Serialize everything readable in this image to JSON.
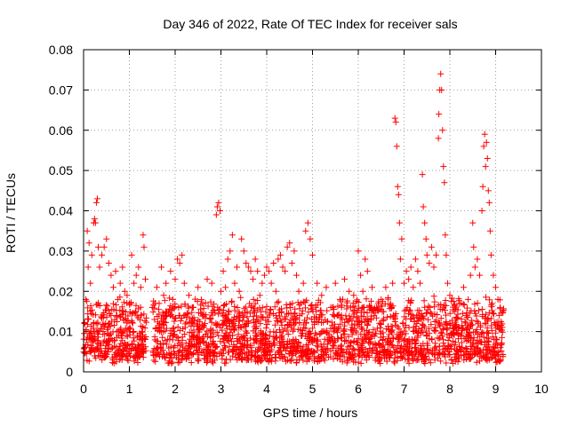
{
  "chart_data": {
    "type": "scatter",
    "title": "Day 346 of 2022, Rate Of TEC Index for receiver sals",
    "xlabel": "GPS time / hours",
    "ylabel": "ROTI / TECUs",
    "xlim": [
      0,
      10
    ],
    "ylim": [
      0,
      0.08
    ],
    "x_ticks": [
      "0",
      "1",
      "2",
      "3",
      "4",
      "5",
      "6",
      "7",
      "8",
      "9",
      "10"
    ],
    "y_ticks": [
      "0",
      "0.01",
      "0.02",
      "0.03",
      "0.04",
      "0.05",
      "0.06",
      "0.07",
      "0.08"
    ],
    "grid": true,
    "marker": "+",
    "marker_color": "#ff0000",
    "series": [
      {
        "name": "ROTI",
        "points": [
          [
            0.02,
            0.012
          ],
          [
            0.05,
            0.018
          ],
          [
            0.08,
            0.035
          ],
          [
            0.1,
            0.026
          ],
          [
            0.12,
            0.032
          ],
          [
            0.15,
            0.022
          ],
          [
            0.18,
            0.029
          ],
          [
            0.22,
            0.037
          ],
          [
            0.24,
            0.038
          ],
          [
            0.26,
            0.037
          ],
          [
            0.28,
            0.042
          ],
          [
            0.3,
            0.043
          ],
          [
            0.32,
            0.031
          ],
          [
            0.35,
            0.026
          ],
          [
            0.4,
            0.029
          ],
          [
            0.45,
            0.031
          ],
          [
            0.5,
            0.033
          ],
          [
            0.55,
            0.027
          ],
          [
            0.6,
            0.024
          ],
          [
            0.65,
            0.021
          ],
          [
            0.7,
            0.025
          ],
          [
            0.75,
            0.018
          ],
          [
            0.8,
            0.022
          ],
          [
            0.85,
            0.026
          ],
          [
            0.9,
            0.02
          ],
          [
            0.95,
            0.019
          ],
          [
            1.0,
            0.017
          ],
          [
            1.05,
            0.029
          ],
          [
            1.1,
            0.022
          ],
          [
            1.15,
            0.024
          ],
          [
            1.2,
            0.026
          ],
          [
            1.25,
            0.021
          ],
          [
            1.3,
            0.034
          ],
          [
            1.32,
            0.031
          ],
          [
            1.35,
            0.023
          ],
          [
            1.5,
            0.016
          ],
          [
            1.55,
            0.013
          ],
          [
            1.6,
            0.021
          ],
          [
            1.65,
            0.017
          ],
          [
            1.7,
            0.026
          ],
          [
            1.75,
            0.019
          ],
          [
            1.8,
            0.022
          ],
          [
            1.85,
            0.015
          ],
          [
            1.9,
            0.025
          ],
          [
            1.95,
            0.018
          ],
          [
            2.0,
            0.023
          ],
          [
            2.05,
            0.028
          ],
          [
            2.1,
            0.027
          ],
          [
            2.15,
            0.029
          ],
          [
            2.2,
            0.022
          ],
          [
            2.3,
            0.019
          ],
          [
            2.4,
            0.016
          ],
          [
            2.5,
            0.021
          ],
          [
            2.6,
            0.017
          ],
          [
            2.7,
            0.023
          ],
          [
            2.8,
            0.022
          ],
          [
            2.9,
            0.039
          ],
          [
            2.92,
            0.041
          ],
          [
            2.95,
            0.042
          ],
          [
            2.98,
            0.04
          ],
          [
            3.0,
            0.02
          ],
          [
            3.05,
            0.025
          ],
          [
            3.1,
            0.021
          ],
          [
            3.15,
            0.028
          ],
          [
            3.2,
            0.03
          ],
          [
            3.25,
            0.034
          ],
          [
            3.3,
            0.022
          ],
          [
            3.35,
            0.026
          ],
          [
            3.4,
            0.02
          ],
          [
            3.45,
            0.033
          ],
          [
            3.5,
            0.03
          ],
          [
            3.55,
            0.027
          ],
          [
            3.6,
            0.026
          ],
          [
            3.65,
            0.025
          ],
          [
            3.7,
            0.023
          ],
          [
            3.75,
            0.028
          ],
          [
            3.8,
            0.025
          ],
          [
            3.85,
            0.019
          ],
          [
            3.9,
            0.022
          ],
          [
            3.95,
            0.024
          ],
          [
            4.0,
            0.026
          ],
          [
            4.05,
            0.025
          ],
          [
            4.1,
            0.022
          ],
          [
            4.15,
            0.027
          ],
          [
            4.2,
            0.02
          ],
          [
            4.25,
            0.028
          ],
          [
            4.3,
            0.029
          ],
          [
            4.35,
            0.026
          ],
          [
            4.4,
            0.025
          ],
          [
            4.45,
            0.031
          ],
          [
            4.5,
            0.032
          ],
          [
            4.55,
            0.027
          ],
          [
            4.6,
            0.03
          ],
          [
            4.65,
            0.024
          ],
          [
            4.7,
            0.02
          ],
          [
            4.75,
            0.017
          ],
          [
            4.8,
            0.022
          ],
          [
            4.85,
            0.035
          ],
          [
            4.9,
            0.037
          ],
          [
            4.95,
            0.033
          ],
          [
            5.0,
            0.029
          ],
          [
            5.1,
            0.022
          ],
          [
            5.2,
            0.019
          ],
          [
            5.3,
            0.021
          ],
          [
            5.4,
            0.016
          ],
          [
            5.5,
            0.022
          ],
          [
            5.6,
            0.018
          ],
          [
            5.7,
            0.023
          ],
          [
            5.8,
            0.02
          ],
          [
            5.9,
            0.019
          ],
          [
            6.0,
            0.03
          ],
          [
            6.05,
            0.024
          ],
          [
            6.1,
            0.02
          ],
          [
            6.15,
            0.028
          ],
          [
            6.2,
            0.025
          ],
          [
            6.3,
            0.021
          ],
          [
            6.4,
            0.016
          ],
          [
            6.5,
            0.018
          ],
          [
            6.6,
            0.021
          ],
          [
            6.7,
            0.017
          ],
          [
            6.75,
            0.022
          ],
          [
            6.8,
            0.063
          ],
          [
            6.82,
            0.062
          ],
          [
            6.84,
            0.056
          ],
          [
            6.86,
            0.046
          ],
          [
            6.88,
            0.044
          ],
          [
            6.9,
            0.037
          ],
          [
            6.92,
            0.028
          ],
          [
            6.95,
            0.033
          ],
          [
            7.0,
            0.022
          ],
          [
            7.05,
            0.025
          ],
          [
            7.1,
            0.023
          ],
          [
            7.15,
            0.026
          ],
          [
            7.2,
            0.021
          ],
          [
            7.25,
            0.028
          ],
          [
            7.3,
            0.025
          ],
          [
            7.35,
            0.022
          ],
          [
            7.4,
            0.049
          ],
          [
            7.42,
            0.041
          ],
          [
            7.45,
            0.037
          ],
          [
            7.48,
            0.033
          ],
          [
            7.5,
            0.029
          ],
          [
            7.55,
            0.027
          ],
          [
            7.6,
            0.031
          ],
          [
            7.65,
            0.026
          ],
          [
            7.7,
            0.029
          ],
          [
            7.75,
            0.058
          ],
          [
            7.76,
            0.064
          ],
          [
            7.78,
            0.07
          ],
          [
            7.8,
            0.074
          ],
          [
            7.82,
            0.07
          ],
          [
            7.84,
            0.06
          ],
          [
            7.86,
            0.051
          ],
          [
            7.88,
            0.047
          ],
          [
            7.9,
            0.034
          ],
          [
            7.92,
            0.029
          ],
          [
            7.95,
            0.022
          ],
          [
            8.0,
            0.019
          ],
          [
            8.1,
            0.015
          ],
          [
            8.2,
            0.017
          ],
          [
            8.3,
            0.021
          ],
          [
            8.4,
            0.018
          ],
          [
            8.45,
            0.024
          ],
          [
            8.5,
            0.037
          ],
          [
            8.52,
            0.031
          ],
          [
            8.55,
            0.026
          ],
          [
            8.6,
            0.028
          ],
          [
            8.65,
            0.024
          ],
          [
            8.7,
            0.04
          ],
          [
            8.72,
            0.046
          ],
          [
            8.74,
            0.056
          ],
          [
            8.76,
            0.059
          ],
          [
            8.78,
            0.051
          ],
          [
            8.8,
            0.057
          ],
          [
            8.82,
            0.053
          ],
          [
            8.84,
            0.045
          ],
          [
            8.86,
            0.042
          ],
          [
            8.88,
            0.035
          ],
          [
            8.9,
            0.029
          ],
          [
            8.95,
            0.024
          ],
          [
            9.0,
            0.021
          ],
          [
            9.05,
            0.018
          ],
          [
            9.1,
            0.016
          ],
          [
            9.15,
            0.015
          ]
        ]
      }
    ],
    "baseline_band": {
      "description": "dense cloud of ROTI points between ~0.002 and ~0.016 TECU across all times",
      "segments": [
        [
          0.0,
          1.38
        ],
        [
          1.5,
          9.18
        ]
      ],
      "low": 0.002,
      "high": 0.016
    }
  }
}
